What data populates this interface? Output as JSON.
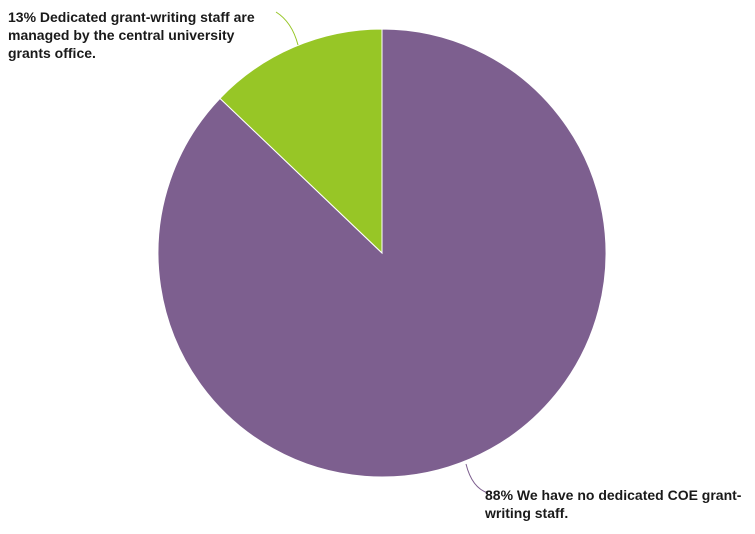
{
  "chart_data": {
    "type": "pie",
    "title": "",
    "legend": "none",
    "slices": [
      {
        "label": "88% We have no dedicated COE grant-writing staff.",
        "value": 88,
        "color": "#7d5f8f"
      },
      {
        "label": "13% Dedicated grant-writing staff are managed by the central university grants office.",
        "value": 13,
        "color": "#97c626"
      }
    ]
  }
}
